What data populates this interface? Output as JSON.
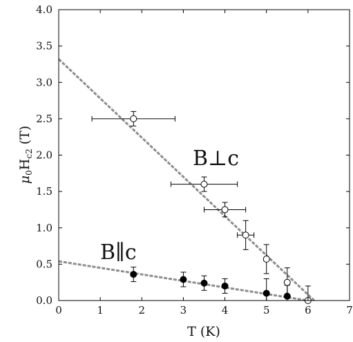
{
  "chart_data": {
    "type": "scatter",
    "xlabel": "T (K)",
    "ylabel_main": "μ",
    "ylabel_sub0": "0",
    "ylabel_H": "H",
    "ylabel_sub1": "c2",
    "ylabel_unit": " (T)",
    "xlim": [
      0,
      7
    ],
    "ylim": [
      0,
      4
    ],
    "x_ticks": [
      0,
      1,
      2,
      3,
      4,
      5,
      6,
      7
    ],
    "x_tick_labels": [
      "0",
      "1",
      "2",
      "3",
      "4",
      "5",
      "6",
      "7"
    ],
    "y_ticks": [
      0,
      0.5,
      1,
      1.5,
      2,
      2.5,
      3,
      3.5,
      4
    ],
    "y_tick_labels": [
      "0.0",
      "0.5",
      "1.0",
      "1.5",
      "2.0",
      "2.5",
      "3.0",
      "3.5",
      "4.0"
    ],
    "grid": false,
    "series": [
      {
        "name": "B⊥c",
        "marker": "open-circle",
        "points": [
          {
            "x": 1.8,
            "y": 2.5,
            "xerr": 1.0,
            "yerr": 0.1
          },
          {
            "x": 3.5,
            "y": 1.6,
            "xerr": 0.8,
            "yerr": 0.1
          },
          {
            "x": 4.0,
            "y": 1.25,
            "xerr": 0.5,
            "yerr": 0.1
          },
          {
            "x": 4.5,
            "y": 0.9,
            "xerr": 0.2,
            "yerr": 0.2
          },
          {
            "x": 5.0,
            "y": 0.57,
            "xerr": 0.0,
            "yerr": 0.2
          },
          {
            "x": 5.5,
            "y": 0.25,
            "xerr": 0.0,
            "yerr": 0.2
          },
          {
            "x": 6.0,
            "y": 0.0,
            "xerr": 0.0,
            "yerr": 0.2
          }
        ],
        "fit_line": {
          "x": [
            0,
            6.15
          ],
          "y": [
            3.32,
            0.0
          ]
        }
      },
      {
        "name": "B∥c",
        "marker": "filled-circle",
        "points": [
          {
            "x": 1.8,
            "y": 0.36,
            "xerr": 0.0,
            "yerr": 0.1
          },
          {
            "x": 3.0,
            "y": 0.29,
            "xerr": 0.0,
            "yerr": 0.1
          },
          {
            "x": 3.5,
            "y": 0.24,
            "xerr": 0.0,
            "yerr": 0.1
          },
          {
            "x": 4.0,
            "y": 0.2,
            "xerr": 0.0,
            "yerr": 0.1
          },
          {
            "x": 5.0,
            "y": 0.1,
            "xerr": 0.0,
            "yerr": 0.2
          },
          {
            "x": 5.5,
            "y": 0.06,
            "xerr": 0.0,
            "yerr": 0.15
          }
        ],
        "fit_line": {
          "x": [
            0,
            6.0
          ],
          "y": [
            0.54,
            0.0
          ]
        }
      }
    ],
    "annotations": [
      {
        "text": "B⊥c",
        "series": 0
      },
      {
        "text": "B∥c",
        "series": 1
      }
    ]
  }
}
